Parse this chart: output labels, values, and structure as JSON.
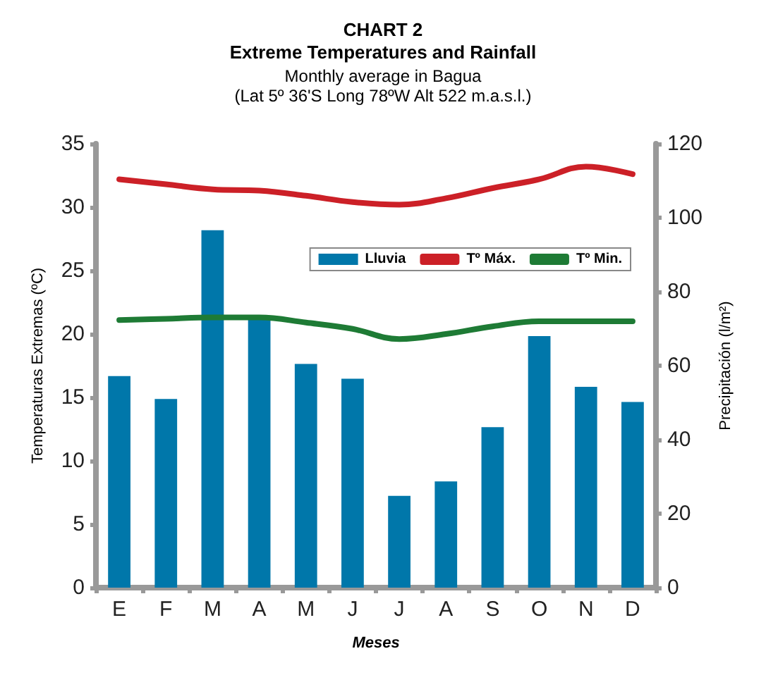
{
  "chart_data": {
    "type": "bar",
    "title": "CHART 2\nExtreme Temperatures and Rainfall",
    "subtitle": "Monthly average in Bagua\n(Lat 5º 36'S Long 78ºW Alt 522 m.a.s.l.)",
    "xlabel": "Meses",
    "ylabel": "Temperaturas Extremas (ºC)",
    "y2label": "Precipitación (l/m²)",
    "categories": [
      "E",
      "F",
      "M",
      "A",
      "M",
      "J",
      "J",
      "A",
      "S",
      "O",
      "N",
      "D"
    ],
    "series": [
      {
        "name": "Lluvia",
        "axis": "y2",
        "color": "#0077aa",
        "values": [
          57.2,
          51,
          96.6,
          73,
          60.5,
          56.5,
          24.8,
          28.7,
          43.4,
          68,
          54.3,
          50.2
        ]
      },
      {
        "name": "Tº Máx.",
        "type": "line",
        "color": "#cc2027",
        "values": [
          32.2,
          31.8,
          31.4,
          31.3,
          30.9,
          30.4,
          30.2,
          30.7,
          31.5,
          32.2,
          33.2,
          32.6
        ]
      },
      {
        "name": "Tº Min.",
        "type": "line",
        "color": "#1e7b35",
        "values": [
          21.1,
          21.2,
          21.3,
          21.3,
          20.9,
          20.4,
          19.6,
          20.0,
          20.6,
          21.0,
          21.0,
          21.0
        ]
      }
    ],
    "ylim": [
      0,
      35
    ],
    "yticks": [
      0,
      5,
      10,
      15,
      20,
      25,
      30,
      35
    ],
    "y2lim": [
      0,
      120
    ],
    "y2ticks": [
      0,
      20,
      40,
      60,
      80,
      100,
      120
    ],
    "grid": false,
    "legend": "top right",
    "marker": "none",
    "line_style": "solid"
  }
}
